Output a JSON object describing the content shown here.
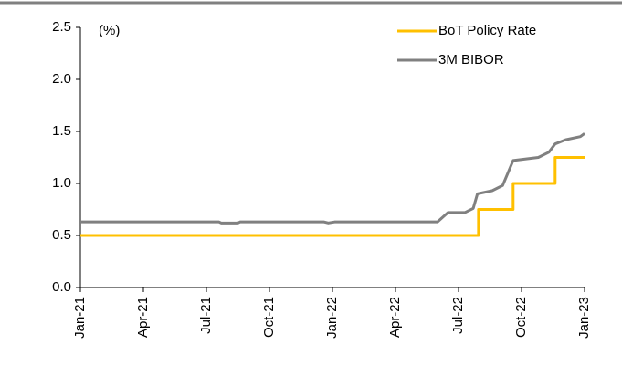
{
  "chart_data": {
    "type": "line",
    "unit_label": "(%)",
    "xlim": [
      0,
      24
    ],
    "xticks": [
      {
        "value": 0,
        "label": "Jan-21"
      },
      {
        "value": 3,
        "label": "Apr-21"
      },
      {
        "value": 6,
        "label": "Jul-21"
      },
      {
        "value": 9,
        "label": "Oct-21"
      },
      {
        "value": 12,
        "label": "Jan-22"
      },
      {
        "value": 15,
        "label": "Apr-22"
      },
      {
        "value": 18,
        "label": "Jul-22"
      },
      {
        "value": 21,
        "label": "Oct-22"
      },
      {
        "value": 24,
        "label": "Jan-23"
      }
    ],
    "ylim": [
      0,
      2.5
    ],
    "yticks": [
      {
        "value": 0,
        "label": "0.0"
      },
      0.5,
      {
        "value": 1,
        "label": "1.0"
      },
      1.5,
      {
        "value": 2,
        "label": "2.0"
      },
      2.5
    ],
    "grid": false,
    "legend": "top-right",
    "series": [
      {
        "name": "BoT Policy Rate",
        "color": "#FFC000",
        "x": [
          0,
          18.95,
          18.95,
          20.6,
          20.6,
          22.6,
          22.6,
          24
        ],
        "values": [
          0.5,
          0.5,
          0.75,
          0.75,
          1.0,
          1.0,
          1.25,
          1.25
        ]
      },
      {
        "name": "3M BIBOR",
        "color": "#808080",
        "x": [
          0,
          6.6,
          6.7,
          7.5,
          7.6,
          11.6,
          11.8,
          12.1,
          12.3,
          17.0,
          17.5,
          18.3,
          18.7,
          18.9,
          19.6,
          20.1,
          20.6,
          21.8,
          22.3,
          22.6,
          23.1,
          23.8,
          24
        ],
        "values": [
          0.63,
          0.63,
          0.62,
          0.62,
          0.63,
          0.63,
          0.62,
          0.63,
          0.63,
          0.63,
          0.72,
          0.72,
          0.76,
          0.9,
          0.93,
          0.98,
          1.22,
          1.25,
          1.3,
          1.38,
          1.42,
          1.45,
          1.48
        ]
      }
    ]
  }
}
